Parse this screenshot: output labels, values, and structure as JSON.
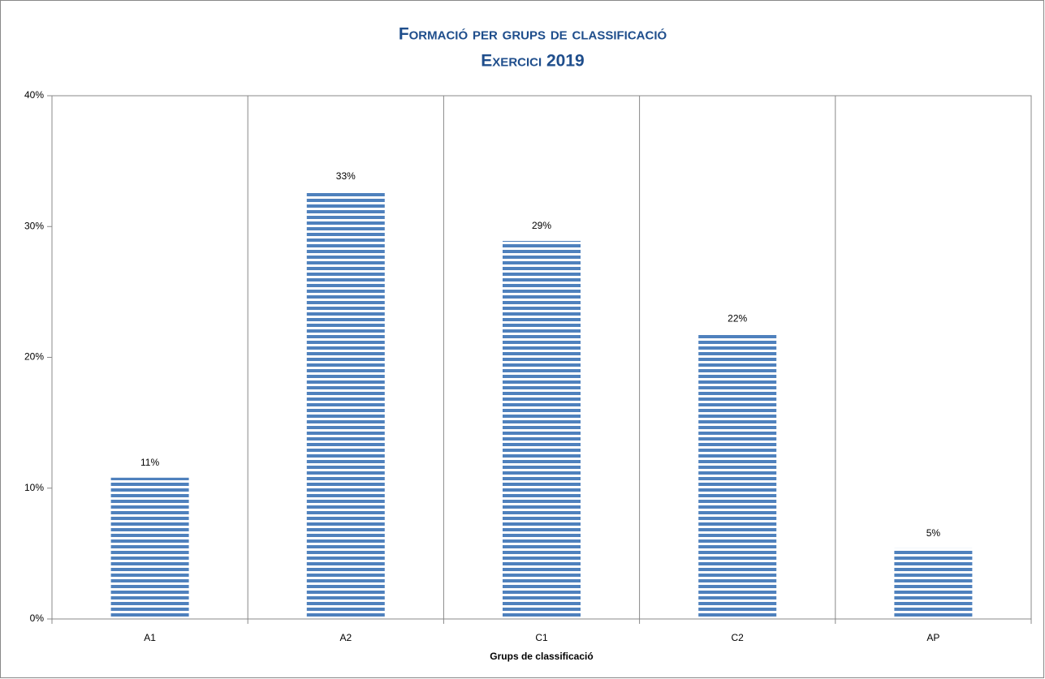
{
  "chart_data": {
    "type": "bar",
    "title": "Formació per grups de classificació",
    "subtitle": "Exercici 2019",
    "x_label": "Grups de classificació",
    "categories": [
      "A1",
      "A2",
      "C1",
      "C2",
      "AP"
    ],
    "values": [
      10.8,
      32.7,
      28.9,
      21.8,
      5.4
    ],
    "value_labels": [
      "11%",
      "33%",
      "29%",
      "22%",
      "5%"
    ],
    "color": "#4f81bd",
    "ylim": [
      0,
      40
    ],
    "yticks": [
      {
        "value": 0,
        "label": "0%"
      },
      {
        "value": 10,
        "label": "10%"
      },
      {
        "value": 20,
        "label": "20%"
      },
      {
        "value": 30,
        "label": "30%"
      },
      {
        "value": 40,
        "label": "40%"
      }
    ]
  }
}
